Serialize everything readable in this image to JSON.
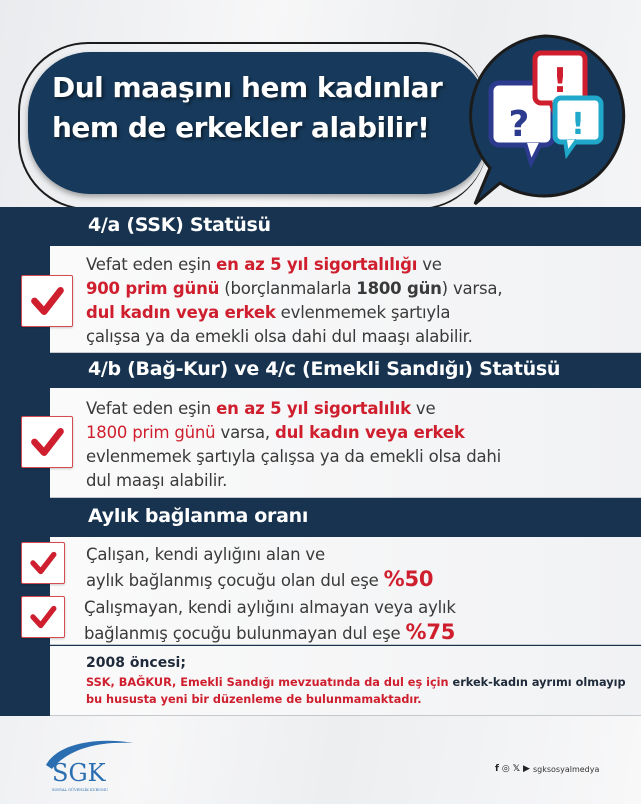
{
  "header": {
    "title_line1": "Dul maaşını hem kadınlar",
    "title_line2": "hem de erkekler alabilir!",
    "bubble_marks": [
      "!",
      "?",
      "!"
    ]
  },
  "colors": {
    "navy": "#173350",
    "red": "#cf1f2e",
    "cyan": "#1fa8c9",
    "blue": "#2d3b8f"
  },
  "sections": [
    {
      "heading": "4/a (SSK) Statüsü",
      "lines": [
        [
          {
            "t": "Vefat eden eşin ",
            "s": ""
          },
          {
            "t": "en az 5 yıl sigortalılığı",
            "s": "rb"
          },
          {
            "t": " ve",
            "s": ""
          }
        ],
        [
          {
            "t": "900 prim günü",
            "s": "rb"
          },
          {
            "t": " (borçlanmalarla ",
            "s": ""
          },
          {
            "t": "1800 gün",
            "s": "b"
          },
          {
            "t": ") varsa,",
            "s": ""
          }
        ],
        [
          {
            "t": "dul kadın veya erkek",
            "s": "rb"
          },
          {
            "t": " evlenmemek şartıyla",
            "s": ""
          }
        ],
        [
          {
            "t": "çalışsa ya da emekli olsa dahi dul maaşı alabilir.",
            "s": ""
          }
        ]
      ]
    },
    {
      "heading": "4/b (Bağ-Kur) ve 4/c (Emekli Sandığı) Statüsü",
      "lines": [
        [
          {
            "t": "Vefat eden eşin ",
            "s": ""
          },
          {
            "t": "en az 5 yıl sigortalılık",
            "s": "rb"
          },
          {
            "t": " ve",
            "s": ""
          }
        ],
        [
          {
            "t": "1800 prim günü",
            "s": "r"
          },
          {
            "t": " varsa, ",
            "s": ""
          },
          {
            "t": "dul kadın veya erkek",
            "s": "rb"
          }
        ],
        [
          {
            "t": "evlenmemek şartıyla çalışsa ya da emekli olsa dahi",
            "s": ""
          }
        ],
        [
          {
            "t": "dul maaşı alabilir.",
            "s": ""
          }
        ]
      ]
    },
    {
      "heading": "Aylık bağlanma oranı",
      "items": [
        {
          "lines": [
            [
              {
                "t": "Çalışan, kendi aylığını alan ve",
                "s": ""
              }
            ],
            [
              {
                "t": "aylık bağlanmış çocuğu olan dul eşe  ",
                "s": ""
              },
              {
                "t": "%50",
                "s": "big"
              }
            ]
          ]
        },
        {
          "lines": [
            [
              {
                "t": "Çalışmayan, kendi aylığını almayan veya aylık",
                "s": ""
              }
            ],
            [
              {
                "t": "bağlanmış çocuğu bulunmayan dul eşe  ",
                "s": ""
              },
              {
                "t": "%75",
                "s": "big"
              }
            ]
          ]
        }
      ]
    }
  ],
  "note": {
    "title": "2008 öncesi;",
    "parts": [
      {
        "t": "SSK, BAĞKUR, Emekli Sandığı mevzuatında da dul eş için ",
        "s": ""
      },
      {
        "t": "erkek-kadın ayrımı olmayıp",
        "s": "d"
      },
      {
        "t": " bu hususta yeni bir düzenleme de bulunmamaktadır.",
        "s": ""
      }
    ]
  },
  "footer": {
    "logo_text": "SGK",
    "logo_subtitle": "SOSYAL GÜVENLİK KURUMU",
    "social_handle": "sgksosyalmedya",
    "social_icons": [
      "facebook-icon",
      "instagram-icon",
      "x-icon",
      "youtube-icon"
    ]
  }
}
